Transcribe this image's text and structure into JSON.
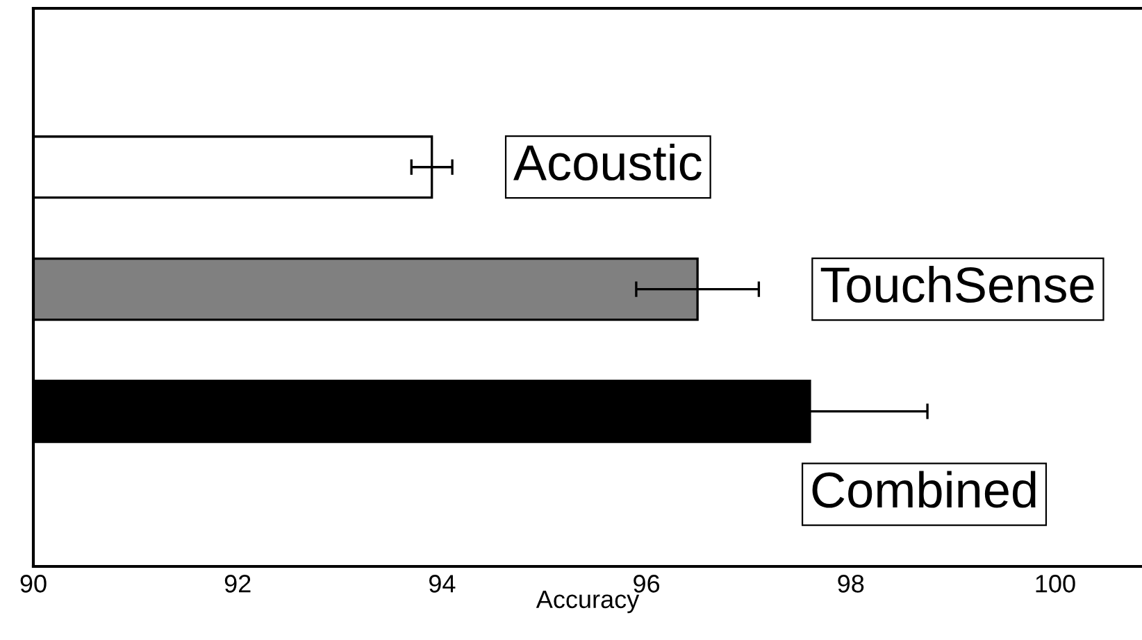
{
  "chart_data": {
    "type": "bar",
    "orientation": "horizontal",
    "xlabel": "Accuracy",
    "categories": [
      "Acoustic",
      "TouchSense",
      "Combined"
    ],
    "values": [
      93.9,
      96.5,
      97.6
    ],
    "errors": [
      0.2,
      0.6,
      1.15
    ],
    "colors": [
      "#ffffff",
      "#808080",
      "#000000"
    ],
    "xlim": [
      90,
      100.85
    ],
    "xticks": [
      90,
      92,
      94,
      96,
      98,
      100
    ],
    "grid": false
  }
}
